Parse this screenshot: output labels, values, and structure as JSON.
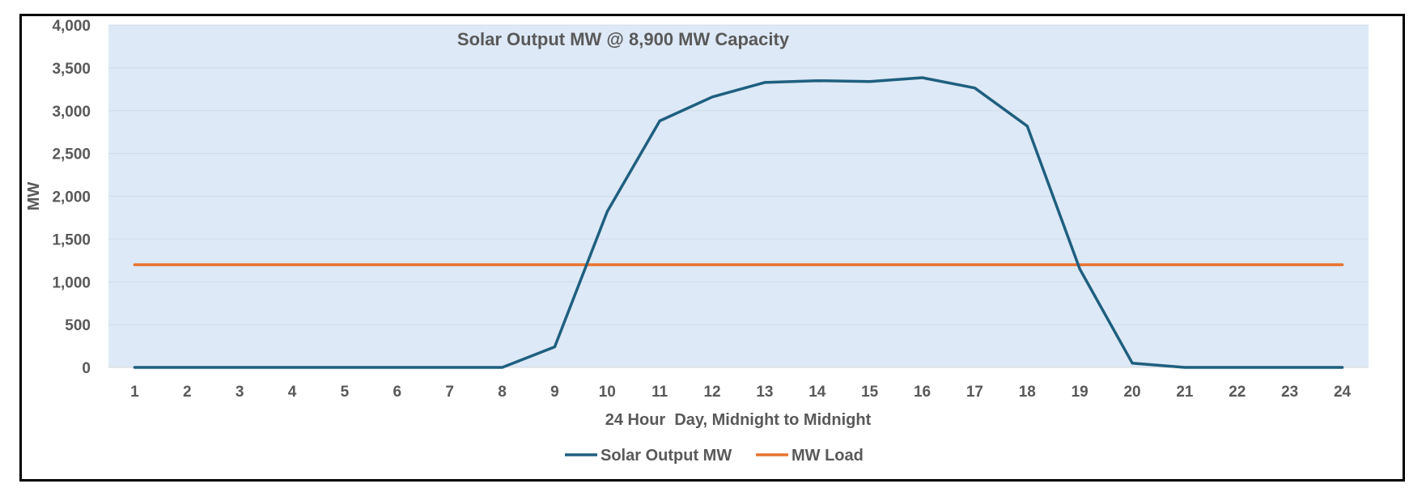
{
  "chart_data": {
    "type": "line",
    "title": "Solar Output MW @ 8,900 MW Capacity",
    "xlabel": "24 Hour  Day, Midnight to Midnight",
    "ylabel": "MW",
    "ylim": [
      0,
      4000
    ],
    "y_ticks": [
      0,
      500,
      1000,
      1500,
      2000,
      2500,
      3000,
      3500,
      4000
    ],
    "y_tick_labels": [
      "0",
      "500",
      "1,000",
      "1,500",
      "2,000",
      "2,500",
      "3,000",
      "3,500",
      "4,000"
    ],
    "categories": [
      "1",
      "2",
      "3",
      "4",
      "5",
      "6",
      "7",
      "8",
      "9",
      "10",
      "11",
      "12",
      "13",
      "14",
      "15",
      "16",
      "17",
      "18",
      "19",
      "20",
      "21",
      "22",
      "23",
      "24"
    ],
    "grid": true,
    "legend_position": "bottom",
    "plot_background": "#dde9f6",
    "series": [
      {
        "name": "Solar Output MW",
        "color": "#1f5f7f",
        "values": [
          0,
          0,
          0,
          0,
          0,
          0,
          0,
          0,
          240,
          1820,
          2880,
          3160,
          3330,
          3350,
          3340,
          3385,
          3265,
          2820,
          1150,
          50,
          0,
          0,
          0,
          0
        ]
      },
      {
        "name": "MW Load",
        "color": "#e8732f",
        "values": [
          1200,
          1200,
          1200,
          1200,
          1200,
          1200,
          1200,
          1200,
          1200,
          1200,
          1200,
          1200,
          1200,
          1200,
          1200,
          1200,
          1200,
          1200,
          1200,
          1200,
          1200,
          1200,
          1200,
          1200
        ]
      }
    ]
  }
}
